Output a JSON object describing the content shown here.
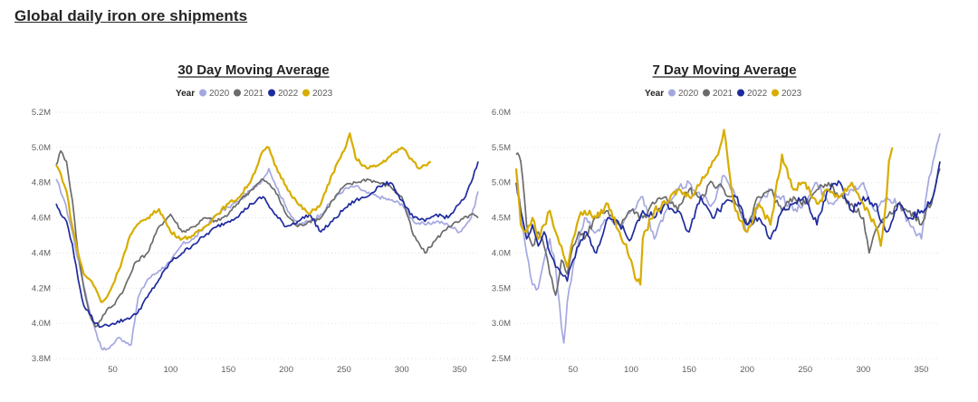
{
  "page": {
    "title": "Global daily iron ore shipments"
  },
  "colors": {
    "2020": "#a4a8e0",
    "2021": "#6b6b6b",
    "2022": "#1f2a9e",
    "2023": "#d7ad00"
  },
  "chart_data": [
    {
      "type": "line",
      "title": "30 Day Moving Average",
      "legend_title": "Year",
      "legend_position": "top-center",
      "grid": true,
      "xlim": [
        1,
        366
      ],
      "ylim": [
        3.8,
        5.2
      ],
      "x_ticks": [
        50,
        100,
        150,
        200,
        250,
        300,
        350
      ],
      "x_tick_labels": [
        "50",
        "100",
        "150",
        "200",
        "250",
        "300",
        "350"
      ],
      "y_ticks": [
        3.8,
        4.0,
        4.2,
        4.4,
        4.6,
        4.8,
        5.0,
        5.2
      ],
      "y_tick_labels": [
        "3.8M",
        "4.0M",
        "4.2M",
        "4.4M",
        "4.6M",
        "4.8M",
        "5.0M",
        "5.2M"
      ],
      "series": [
        {
          "name": "2020",
          "x": [
            1,
            8,
            15,
            22,
            29,
            36,
            40,
            44,
            50,
            55,
            60,
            66,
            72,
            80,
            90,
            100,
            110,
            120,
            130,
            140,
            150,
            160,
            170,
            180,
            185,
            190,
            200,
            210,
            220,
            230,
            240,
            250,
            260,
            270,
            280,
            290,
            300,
            310,
            320,
            330,
            340,
            350,
            360,
            366
          ],
          "y": [
            4.82,
            4.7,
            4.52,
            4.3,
            4.1,
            3.94,
            3.86,
            3.85,
            3.88,
            3.92,
            3.9,
            3.88,
            4.15,
            4.25,
            4.3,
            4.35,
            4.45,
            4.48,
            4.55,
            4.62,
            4.66,
            4.7,
            4.76,
            4.82,
            4.88,
            4.8,
            4.66,
            4.56,
            4.58,
            4.62,
            4.7,
            4.76,
            4.78,
            4.74,
            4.72,
            4.7,
            4.68,
            4.58,
            4.56,
            4.58,
            4.56,
            4.52,
            4.6,
            4.75
          ]
        },
        {
          "name": "2021",
          "x": [
            1,
            5,
            10,
            15,
            20,
            25,
            30,
            35,
            40,
            45,
            50,
            55,
            60,
            70,
            80,
            90,
            100,
            110,
            120,
            130,
            140,
            150,
            160,
            170,
            180,
            190,
            200,
            210,
            220,
            230,
            240,
            250,
            260,
            270,
            280,
            290,
            300,
            310,
            320,
            330,
            340,
            350,
            360,
            366
          ],
          "y": [
            4.9,
            4.98,
            4.92,
            4.7,
            4.4,
            4.2,
            4.05,
            3.98,
            4.02,
            4.08,
            4.1,
            4.15,
            4.2,
            4.35,
            4.4,
            4.55,
            4.62,
            4.52,
            4.55,
            4.6,
            4.58,
            4.62,
            4.7,
            4.76,
            4.82,
            4.76,
            4.62,
            4.55,
            4.58,
            4.6,
            4.7,
            4.78,
            4.8,
            4.82,
            4.8,
            4.78,
            4.72,
            4.5,
            4.4,
            4.48,
            4.55,
            4.58,
            4.62,
            4.6
          ]
        },
        {
          "name": "2022",
          "x": [
            1,
            5,
            10,
            15,
            20,
            25,
            30,
            35,
            40,
            45,
            50,
            60,
            70,
            80,
            90,
            100,
            110,
            120,
            130,
            140,
            150,
            160,
            170,
            180,
            190,
            200,
            210,
            220,
            230,
            240,
            250,
            260,
            270,
            280,
            290,
            300,
            310,
            320,
            330,
            340,
            350,
            355,
            360,
            366
          ],
          "y": [
            4.68,
            4.62,
            4.58,
            4.45,
            4.25,
            4.1,
            4.05,
            4.0,
            3.98,
            3.99,
            4.0,
            4.02,
            4.05,
            4.15,
            4.25,
            4.35,
            4.4,
            4.45,
            4.5,
            4.55,
            4.58,
            4.62,
            4.68,
            4.72,
            4.62,
            4.55,
            4.58,
            4.62,
            4.52,
            4.58,
            4.65,
            4.7,
            4.72,
            4.78,
            4.8,
            4.7,
            4.6,
            4.58,
            4.62,
            4.6,
            4.68,
            4.72,
            4.8,
            4.92
          ]
        },
        {
          "name": "2023",
          "x": [
            1,
            5,
            10,
            15,
            20,
            25,
            30,
            35,
            40,
            45,
            50,
            55,
            60,
            65,
            70,
            80,
            90,
            100,
            110,
            120,
            130,
            140,
            150,
            160,
            170,
            180,
            185,
            190,
            200,
            210,
            220,
            230,
            240,
            250,
            255,
            260,
            270,
            280,
            290,
            300,
            305,
            310,
            315,
            320,
            325
          ],
          "y": [
            4.9,
            4.85,
            4.75,
            4.55,
            4.4,
            4.28,
            4.25,
            4.2,
            4.12,
            4.15,
            4.22,
            4.3,
            4.4,
            4.5,
            4.55,
            4.6,
            4.65,
            4.52,
            4.48,
            4.5,
            4.55,
            4.62,
            4.68,
            4.72,
            4.82,
            4.98,
            5.0,
            4.9,
            4.78,
            4.68,
            4.62,
            4.68,
            4.85,
            4.98,
            5.08,
            4.94,
            4.88,
            4.9,
            4.95,
            5.0,
            4.96,
            4.92,
            4.88,
            4.9,
            4.92
          ]
        }
      ]
    },
    {
      "type": "line",
      "title": "7 Day Moving Average",
      "legend_title": "Year",
      "legend_position": "top-center",
      "grid": true,
      "xlim": [
        1,
        366
      ],
      "ylim": [
        2.5,
        6.0
      ],
      "x_ticks": [
        50,
        100,
        150,
        200,
        250,
        300,
        350
      ],
      "x_tick_labels": [
        "50",
        "100",
        "150",
        "200",
        "250",
        "300",
        "350"
      ],
      "y_ticks": [
        2.5,
        3.0,
        3.5,
        4.0,
        4.5,
        5.0,
        5.5,
        6.0
      ],
      "y_tick_labels": [
        "2.5M",
        "3.0M",
        "3.5M",
        "4.0M",
        "4.5M",
        "5.0M",
        "5.5M",
        "6.0M"
      ],
      "series": [
        {
          "name": "2020",
          "x": [
            1,
            5,
            10,
            15,
            20,
            25,
            30,
            35,
            40,
            42,
            45,
            50,
            55,
            60,
            70,
            80,
            90,
            100,
            110,
            120,
            130,
            140,
            150,
            160,
            170,
            180,
            190,
            200,
            210,
            220,
            230,
            240,
            250,
            260,
            270,
            280,
            290,
            300,
            310,
            320,
            330,
            340,
            350,
            355,
            360,
            366
          ],
          "y": [
            5.2,
            4.6,
            4.0,
            3.55,
            3.5,
            3.9,
            4.2,
            3.8,
            2.95,
            2.72,
            3.3,
            3.8,
            4.2,
            4.5,
            4.3,
            4.5,
            4.4,
            4.6,
            4.8,
            4.2,
            4.6,
            4.9,
            5.0,
            4.8,
            4.7,
            5.1,
            4.8,
            4.3,
            4.7,
            4.9,
            4.8,
            4.6,
            4.7,
            5.0,
            4.7,
            4.8,
            4.9,
            5.0,
            4.6,
            4.8,
            4.7,
            4.4,
            4.2,
            4.9,
            5.3,
            5.7
          ]
        },
        {
          "name": "2021",
          "x": [
            1,
            5,
            10,
            15,
            20,
            25,
            30,
            35,
            40,
            45,
            50,
            55,
            60,
            70,
            80,
            90,
            100,
            110,
            120,
            130,
            140,
            150,
            160,
            170,
            180,
            190,
            200,
            210,
            220,
            230,
            240,
            250,
            260,
            270,
            280,
            290,
            300,
            305,
            310,
            320,
            330,
            340,
            350,
            360,
            366
          ],
          "y": [
            5.4,
            5.3,
            4.4,
            4.1,
            4.3,
            4.1,
            3.7,
            3.4,
            3.9,
            3.7,
            4.1,
            4.3,
            4.2,
            4.5,
            4.6,
            4.4,
            4.6,
            4.5,
            4.7,
            4.8,
            4.6,
            4.9,
            4.8,
            5.0,
            4.9,
            4.7,
            4.4,
            4.8,
            4.9,
            4.6,
            4.8,
            4.7,
            4.9,
            5.0,
            4.8,
            4.7,
            4.5,
            4.0,
            4.3,
            4.5,
            4.7,
            4.6,
            4.4,
            4.8,
            5.2
          ]
        },
        {
          "name": "2022",
          "x": [
            1,
            5,
            10,
            15,
            20,
            25,
            30,
            35,
            40,
            45,
            50,
            55,
            60,
            70,
            80,
            90,
            100,
            110,
            120,
            130,
            140,
            150,
            160,
            170,
            180,
            190,
            200,
            210,
            220,
            230,
            240,
            250,
            260,
            270,
            280,
            290,
            300,
            310,
            320,
            330,
            340,
            350,
            360,
            366
          ],
          "y": [
            5.0,
            4.6,
            4.2,
            4.4,
            4.1,
            4.3,
            4.0,
            3.8,
            3.7,
            3.6,
            3.9,
            4.1,
            4.3,
            4.0,
            4.5,
            4.4,
            4.2,
            4.6,
            4.5,
            4.7,
            4.6,
            4.3,
            4.8,
            4.5,
            4.7,
            4.8,
            4.4,
            4.5,
            4.2,
            4.6,
            4.7,
            4.8,
            4.4,
            4.9,
            5.0,
            4.6,
            4.8,
            4.7,
            4.3,
            4.7,
            4.5,
            4.6,
            4.8,
            5.3
          ]
        },
        {
          "name": "2023",
          "x": [
            1,
            5,
            10,
            15,
            20,
            25,
            30,
            35,
            40,
            45,
            50,
            55,
            60,
            70,
            80,
            90,
            100,
            105,
            108,
            110,
            120,
            130,
            140,
            150,
            160,
            170,
            175,
            180,
            185,
            190,
            200,
            210,
            220,
            230,
            240,
            250,
            260,
            270,
            280,
            290,
            300,
            310,
            315,
            320,
            322,
            325
          ],
          "y": [
            5.2,
            4.4,
            4.3,
            4.5,
            4.2,
            4.4,
            4.6,
            4.3,
            4.1,
            3.8,
            4.2,
            4.5,
            4.6,
            4.5,
            4.7,
            4.3,
            3.9,
            3.6,
            3.55,
            4.2,
            4.6,
            4.7,
            4.9,
            4.8,
            5.0,
            5.3,
            5.4,
            5.75,
            5.1,
            4.6,
            4.3,
            4.7,
            4.4,
            5.4,
            4.9,
            5.0,
            4.7,
            4.9,
            4.8,
            5.0,
            4.7,
            4.4,
            4.1,
            4.8,
            5.3,
            5.5
          ]
        }
      ]
    }
  ]
}
